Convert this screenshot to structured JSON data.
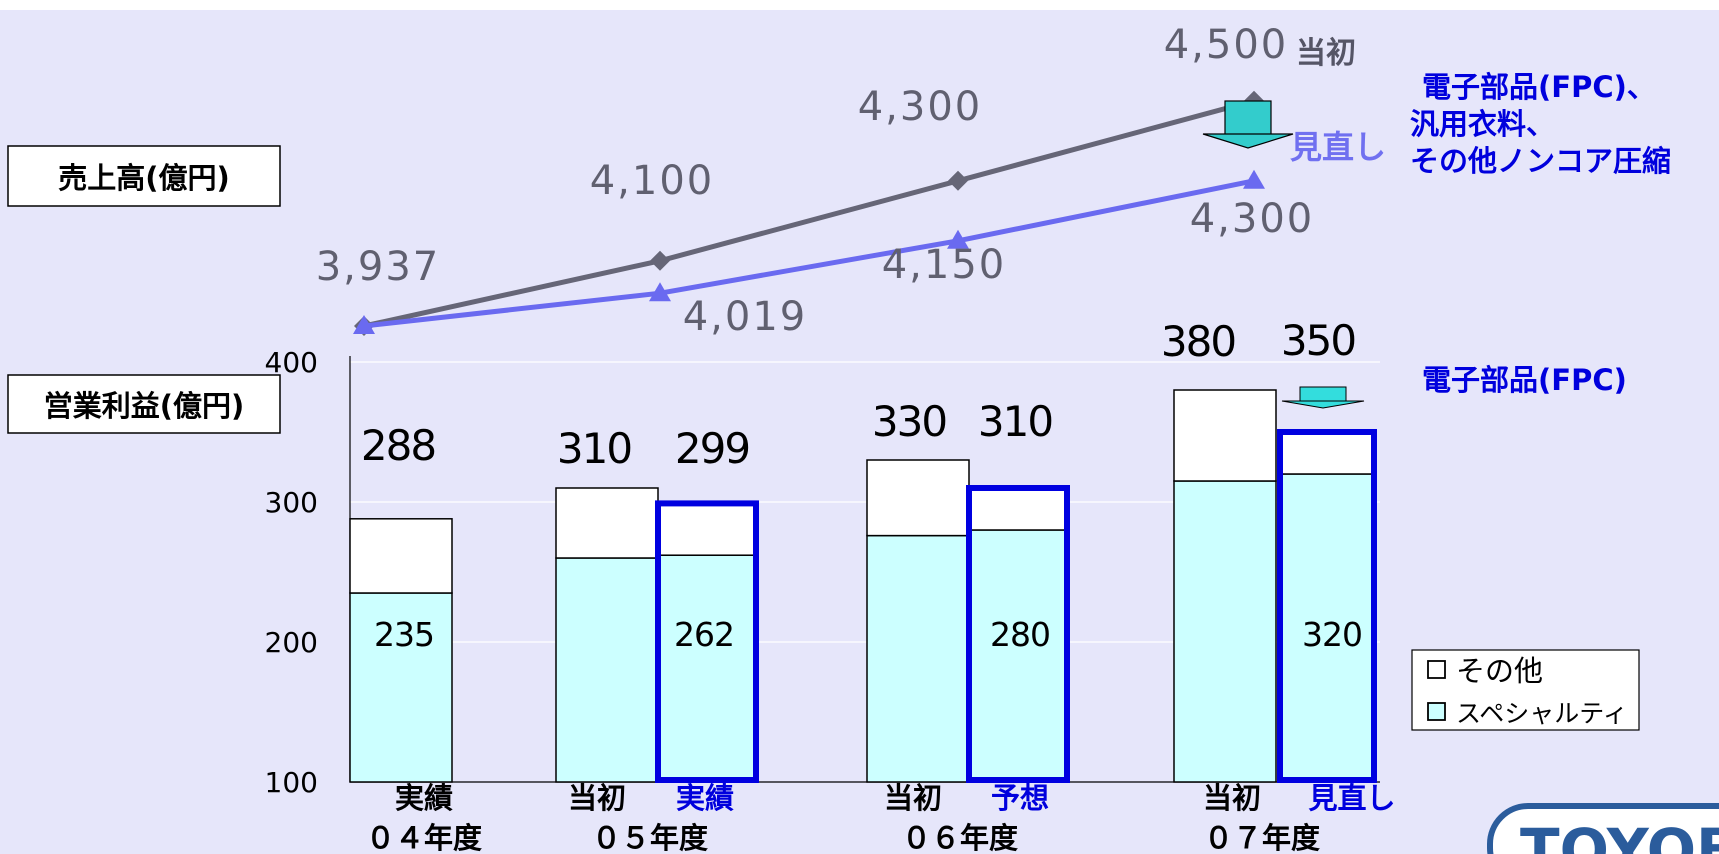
{
  "chart_data": [
    {
      "type": "line",
      "label": "売上高(億円)",
      "series": [
        {
          "name": "当初",
          "color": "#666677",
          "marker": "diamond",
          "points": [
            {
              "x": "04年度",
              "y": 3937
            },
            {
              "x": "05年度",
              "y": 4100
            },
            {
              "x": "06年度",
              "y": 4300
            },
            {
              "x": "07年度",
              "y": 4500
            }
          ]
        },
        {
          "name": "見直し",
          "color": "#6a6af0",
          "marker": "triangle",
          "points": [
            {
              "x": "04年度",
              "y": 3937
            },
            {
              "x": "05年度",
              "y": 4019
            },
            {
              "x": "06年度",
              "y": 4150
            },
            {
              "x": "07年度",
              "y": 4300
            }
          ]
        }
      ],
      "value_labels": [
        "3,937",
        "4,100",
        "4,300",
        "4,500",
        "4,019",
        "4,150",
        "4,300"
      ],
      "series_labels": {
        "original": "当初",
        "revised": "見直し"
      },
      "annotation": [
        "電子部品(FPC)、",
        "汎用衣料、",
        "その他ノンコア圧縮"
      ],
      "arrow_color": "#33cccc"
    },
    {
      "type": "bar",
      "stacked": true,
      "label": "営業利益(億円)",
      "ylim": [
        100,
        400
      ],
      "yticks": [
        100,
        200,
        300,
        400
      ],
      "years": [
        "０４年度",
        "０５年度",
        "０６年度",
        "０７年度"
      ],
      "bars": [
        {
          "year": "０４年度",
          "status": "実績",
          "specialty": 235,
          "total": 288,
          "highlight": false
        },
        {
          "year": "０５年度",
          "status": "当初",
          "specialty": 260,
          "total": 310,
          "highlight": false
        },
        {
          "year": "０５年度",
          "status": "実績",
          "specialty": 262,
          "total": 299,
          "highlight": true
        },
        {
          "year": "０６年度",
          "status": "当初",
          "specialty": 276,
          "total": 330,
          "highlight": false
        },
        {
          "year": "０６年度",
          "status": "予想",
          "specialty": 280,
          "total": 310,
          "highlight": true
        },
        {
          "year": "０７年度",
          "status": "当初",
          "specialty": 315,
          "total": 380,
          "highlight": false
        },
        {
          "year": "０７年度",
          "status": "見直し",
          "specialty": 320,
          "total": 350,
          "highlight": true
        }
      ],
      "total_labels": [
        "288",
        "310",
        "299",
        "330",
        "310",
        "380",
        "350"
      ],
      "specialty_labels": [
        "235",
        "262",
        "280",
        "320"
      ],
      "legend": [
        "その他",
        "スペシャルティ"
      ],
      "annotation": "電子部品(FPC)",
      "colors": {
        "specialty": "#ccffff",
        "other": "#ffffff",
        "highlight_border": "#0000e0",
        "status_blue": "#0000dd"
      }
    }
  ],
  "logo_text": "TOYOBO"
}
